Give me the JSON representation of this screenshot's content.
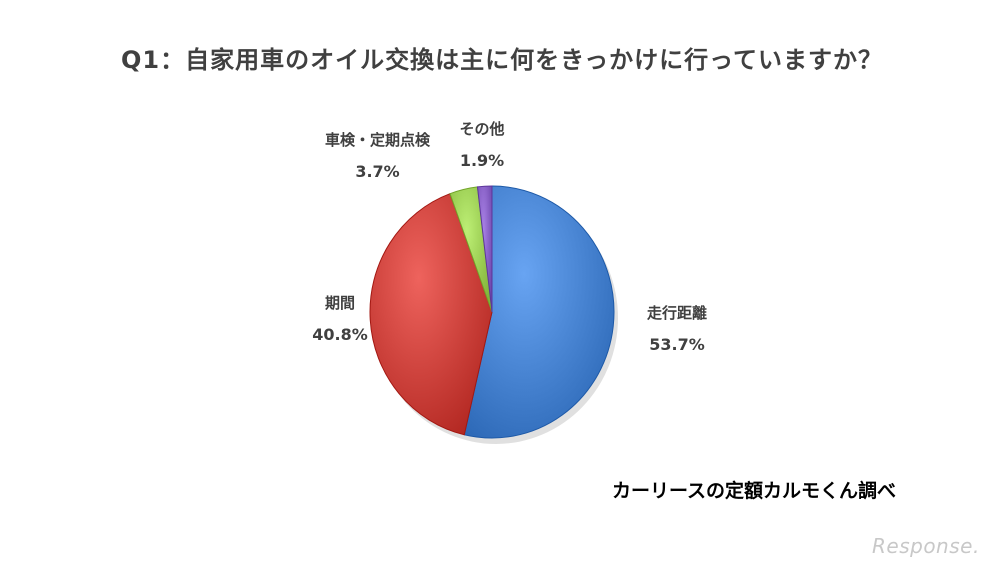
{
  "title": "Q1：自家用車のオイル交換は主に何をきっかけに行っていますか？",
  "source_note": "カーリースの定額カルモくん調べ",
  "brand_logo": "Response.",
  "chart_data": {
    "type": "pie",
    "title": "Q1：自家用車のオイル交換は主に何をきっかけに行っていますか？",
    "slices": [
      {
        "name": "走行距離",
        "value": 53.7,
        "pct_label": "53.7%",
        "color": "#4a86d4"
      },
      {
        "name": "期間",
        "value": 40.8,
        "pct_label": "40.8%",
        "color": "#d0453f"
      },
      {
        "name": "車検・定期点検",
        "value": 3.7,
        "pct_label": "3.7%",
        "color": "#9fd157"
      },
      {
        "name": "その他",
        "value": 1.9,
        "pct_label": "1.9%",
        "color": "#8a63c8"
      }
    ],
    "start": "12 o'clock",
    "direction": "clockwise",
    "legend": "none"
  }
}
